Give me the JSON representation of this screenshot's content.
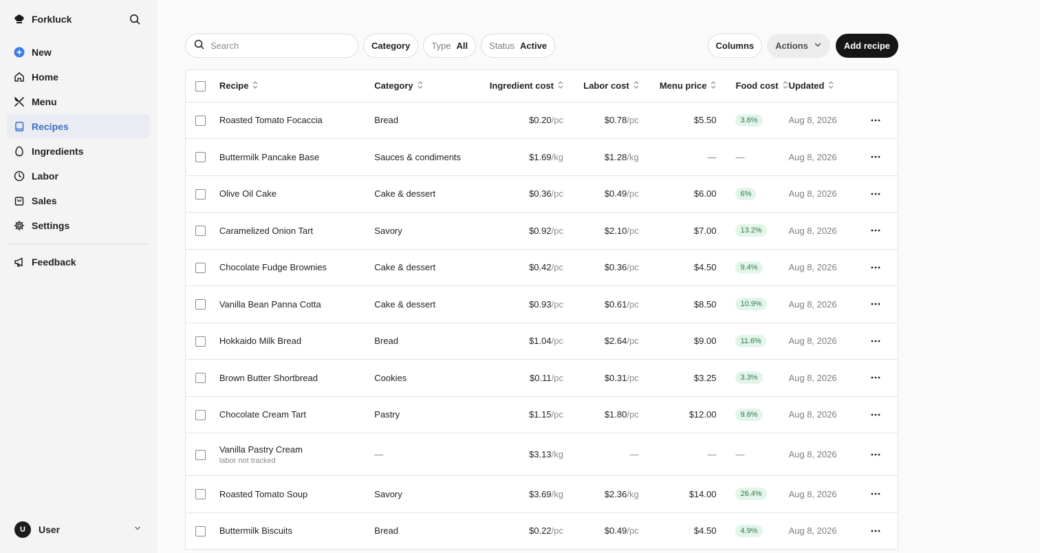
{
  "sidebar": {
    "brand": "Forkluck",
    "nav": [
      {
        "label": "New",
        "icon": "plus-circle-icon"
      },
      {
        "label": "Home",
        "icon": "home-icon"
      },
      {
        "label": "Menu",
        "icon": "utensils-icon"
      },
      {
        "label": "Recipes",
        "icon": "book-icon",
        "active": true
      },
      {
        "label": "Ingredients",
        "icon": "egg-icon"
      },
      {
        "label": "Labor",
        "icon": "clock-icon"
      },
      {
        "label": "Sales",
        "icon": "bag-icon"
      },
      {
        "label": "Settings",
        "icon": "gear-icon"
      }
    ],
    "feedback": "Feedback",
    "user": {
      "initial": "U",
      "name": "User"
    }
  },
  "toolbar": {
    "search_placeholder": "Search",
    "category_label": "Category",
    "type_label": "Type",
    "type_value": "All",
    "status_label": "Status",
    "status_value": "Active",
    "columns_label": "Columns",
    "actions_label": "Actions",
    "add_label": "Add recipe"
  },
  "table": {
    "headers": [
      "Recipe",
      "Category",
      "Ingredient cost",
      "Labor cost",
      "Menu price",
      "Food cost",
      "Updated"
    ],
    "rows": [
      {
        "name": "Roasted Tomato Focaccia",
        "category": "Bread",
        "ing": "$0.20",
        "ing_unit": "/pc",
        "lab": "$0.78",
        "lab_unit": "/pc",
        "menu": "$5.50",
        "food": "3.6%",
        "updated": "Aug 8, 2026"
      },
      {
        "name": "Buttermilk Pancake Base",
        "category": "Sauces & condiments",
        "ing": "$1.69",
        "ing_unit": "/kg",
        "lab": "$1.28",
        "lab_unit": "/kg",
        "menu": "—",
        "food": "—",
        "updated": "Aug 8, 2026"
      },
      {
        "name": "Olive Oil Cake",
        "category": "Cake & dessert",
        "ing": "$0.36",
        "ing_unit": "/pc",
        "lab": "$0.49",
        "lab_unit": "/pc",
        "menu": "$6.00",
        "food": "6%",
        "updated": "Aug 8, 2026"
      },
      {
        "name": "Caramelized Onion Tart",
        "category": "Savory",
        "ing": "$0.92",
        "ing_unit": "/pc",
        "lab": "$2.10",
        "lab_unit": "/pc",
        "menu": "$7.00",
        "food": "13.2%",
        "updated": "Aug 8, 2026"
      },
      {
        "name": "Chocolate Fudge Brownies",
        "category": "Cake & dessert",
        "ing": "$0.42",
        "ing_unit": "/pc",
        "lab": "$0.36",
        "lab_unit": "/pc",
        "menu": "$4.50",
        "food": "9.4%",
        "updated": "Aug 8, 2026"
      },
      {
        "name": "Vanilla Bean Panna Cotta",
        "category": "Cake & dessert",
        "ing": "$0.93",
        "ing_unit": "/pc",
        "lab": "$0.61",
        "lab_unit": "/pc",
        "menu": "$8.50",
        "food": "10.9%",
        "updated": "Aug 8, 2026"
      },
      {
        "name": "Hokkaido Milk Bread",
        "category": "Bread",
        "ing": "$1.04",
        "ing_unit": "/pc",
        "lab": "$2.64",
        "lab_unit": "/pc",
        "menu": "$9.00",
        "food": "11.6%",
        "updated": "Aug 8, 2026"
      },
      {
        "name": "Brown Butter Shortbread",
        "category": "Cookies",
        "ing": "$0.11",
        "ing_unit": "/pc",
        "lab": "$0.31",
        "lab_unit": "/pc",
        "menu": "$3.25",
        "food": "3.3%",
        "updated": "Aug 8, 2026"
      },
      {
        "name": "Chocolate Cream Tart",
        "category": "Pastry",
        "ing": "$1.15",
        "ing_unit": "/pc",
        "lab": "$1.80",
        "lab_unit": "/pc",
        "menu": "$12.00",
        "food": "9.6%",
        "updated": "Aug 8, 2026"
      },
      {
        "name": "Vanilla Pastry Cream",
        "sub": "labor not tracked",
        "category": "—",
        "ing": "$3.13",
        "ing_unit": "/kg",
        "lab": "—",
        "lab_unit": "",
        "menu": "—",
        "food": "—",
        "updated": "Aug 8, 2026"
      },
      {
        "name": "Roasted Tomato Soup",
        "category": "Savory",
        "ing": "$3.69",
        "ing_unit": "/kg",
        "lab": "$2.36",
        "lab_unit": "/kg",
        "menu": "$14.00",
        "food": "26.4%",
        "updated": "Aug 8, 2026"
      },
      {
        "name": "Buttermilk Biscuits",
        "category": "Bread",
        "ing": "$0.22",
        "ing_unit": "/pc",
        "lab": "$0.49",
        "lab_unit": "/pc",
        "menu": "$4.50",
        "food": "4.9%",
        "updated": "Aug 8, 2026"
      }
    ]
  }
}
